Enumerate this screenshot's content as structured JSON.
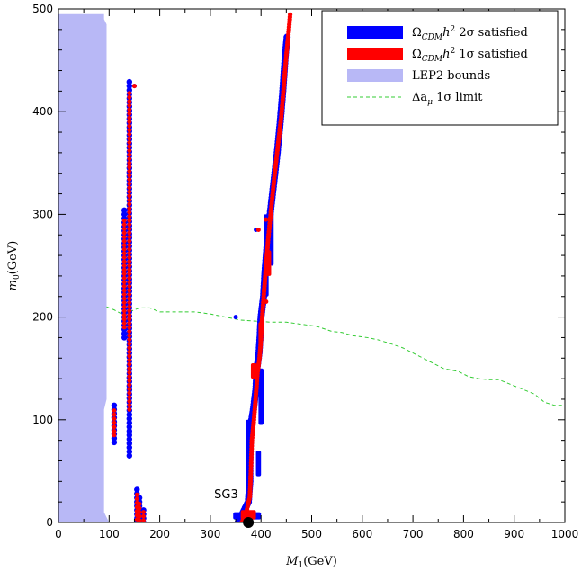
{
  "chart_data": {
    "type": "scatter",
    "xlabel_main": "M",
    "xlabel_sub": "1",
    "xlabel_unit": "(GeV)",
    "ylabel_main": "m",
    "ylabel_sub": "0",
    "ylabel_unit": "(GeV)",
    "xlim": [
      0,
      1000
    ],
    "ylim": [
      0,
      500
    ],
    "xticks": [
      0,
      100,
      200,
      300,
      400,
      500,
      600,
      700,
      800,
      900,
      1000
    ],
    "yticks": [
      0,
      100,
      200,
      300,
      400,
      500
    ],
    "grid": false,
    "legend_position": "top-right",
    "legend": [
      {
        "id": "two-sigma",
        "pre": "Ω",
        "sub": "CDM",
        "mid": "h",
        "sup": "2",
        "post": " 2σ satisfied",
        "color": "#0000ff"
      },
      {
        "id": "one-sigma",
        "pre": "Ω",
        "sub": "CDM",
        "mid": "h",
        "sup": "2",
        "post": " 1σ satisfied",
        "color": "#ff0000"
      },
      {
        "id": "lep2",
        "pre": "LEP2 bounds",
        "sub": "",
        "mid": "",
        "sup": "",
        "post": "",
        "color": "#b8b8f6"
      },
      {
        "id": "gmu",
        "pre": "Δa",
        "sub": "μ",
        "mid": "",
        "sup": "",
        "post": " 1σ limit",
        "color": "#33cc33"
      }
    ],
    "lep2_region": [
      [
        0,
        0
      ],
      [
        0,
        495
      ],
      [
        10,
        495
      ],
      [
        90,
        495
      ],
      [
        90,
        490
      ],
      [
        95,
        485
      ],
      [
        95,
        120
      ],
      [
        90,
        110
      ],
      [
        90,
        10
      ],
      [
        95,
        5
      ],
      [
        100,
        0
      ]
    ],
    "gmu_line": [
      [
        95,
        210
      ],
      [
        110,
        207
      ],
      [
        125,
        203
      ],
      [
        145,
        206
      ],
      [
        160,
        209
      ],
      [
        180,
        209
      ],
      [
        200,
        205
      ],
      [
        220,
        205
      ],
      [
        240,
        205
      ],
      [
        270,
        205
      ],
      [
        300,
        203
      ],
      [
        330,
        200
      ],
      [
        360,
        197
      ],
      [
        390,
        196
      ],
      [
        420,
        195
      ],
      [
        450,
        195
      ],
      [
        480,
        193
      ],
      [
        510,
        191
      ],
      [
        540,
        186
      ],
      [
        560,
        185
      ],
      [
        580,
        182
      ],
      [
        610,
        180
      ],
      [
        630,
        178
      ],
      [
        650,
        175
      ],
      [
        680,
        170
      ],
      [
        700,
        165
      ],
      [
        720,
        160
      ],
      [
        740,
        155
      ],
      [
        760,
        150
      ],
      [
        790,
        147
      ],
      [
        810,
        142
      ],
      [
        830,
        140
      ],
      [
        850,
        139
      ],
      [
        870,
        139
      ],
      [
        900,
        133
      ],
      [
        920,
        129
      ],
      [
        940,
        125
      ],
      [
        960,
        117
      ],
      [
        980,
        114
      ],
      [
        995,
        114
      ]
    ],
    "blue_bands": [
      {
        "x": 140,
        "y0": 65,
        "y1": 432
      },
      {
        "x": 130,
        "y0": 180,
        "y1": 305
      },
      {
        "x": 110,
        "y0": 78,
        "y1": 115
      },
      {
        "x": 155,
        "y0": 0,
        "y1": 33
      },
      {
        "x": 160,
        "y0": 0,
        "y1": 25
      },
      {
        "x": 168,
        "y0": 0,
        "y1": 12
      }
    ],
    "blue_points": [
      [
        150,
        425
      ],
      [
        350,
        200
      ],
      [
        390,
        285
      ]
    ],
    "red_bands": [
      {
        "x": 140,
        "y0": 110,
        "y1": 420
      },
      {
        "x": 130,
        "y0": 190,
        "y1": 295
      },
      {
        "x": 110,
        "y0": 85,
        "y1": 110
      },
      {
        "x": 155,
        "y0": 3,
        "y1": 28
      },
      {
        "x": 160,
        "y0": 2,
        "y1": 20
      },
      {
        "x": 168,
        "y0": 2,
        "y1": 10
      }
    ],
    "red_points": [
      [
        150,
        425
      ],
      [
        410,
        295
      ],
      [
        395,
        285
      ],
      [
        410,
        215
      ]
    ],
    "coann_blue_path": [
      [
        355,
        0
      ],
      [
        365,
        10
      ],
      [
        375,
        20
      ],
      [
        378,
        40
      ],
      [
        378,
        65
      ],
      [
        380,
        95
      ],
      [
        385,
        110
      ],
      [
        390,
        130
      ],
      [
        392,
        150
      ],
      [
        396,
        165
      ],
      [
        398,
        180
      ],
      [
        400,
        200
      ],
      [
        405,
        220
      ],
      [
        408,
        245
      ],
      [
        412,
        270
      ],
      [
        418,
        300
      ],
      [
        425,
        330
      ],
      [
        432,
        360
      ],
      [
        438,
        390
      ],
      [
        443,
        420
      ],
      [
        448,
        455
      ],
      [
        452,
        475
      ]
    ],
    "coann_red_path": [
      [
        362,
        0
      ],
      [
        370,
        8
      ],
      [
        378,
        25
      ],
      [
        380,
        50
      ],
      [
        382,
        80
      ],
      [
        386,
        100
      ],
      [
        390,
        125
      ],
      [
        393,
        145
      ],
      [
        397,
        160
      ],
      [
        400,
        178
      ],
      [
        402,
        198
      ],
      [
        406,
        225
      ],
      [
        410,
        250
      ],
      [
        414,
        275
      ],
      [
        420,
        305
      ],
      [
        426,
        335
      ],
      [
        433,
        365
      ],
      [
        440,
        395
      ],
      [
        445,
        425
      ],
      [
        450,
        455
      ],
      [
        455,
        480
      ],
      [
        458,
        497
      ]
    ],
    "extra_blue_blocks": [
      [
        370,
        45,
        382,
        100
      ],
      [
        390,
        45,
        400,
        70
      ],
      [
        395,
        95,
        405,
        150
      ],
      [
        345,
        3,
        400,
        10
      ],
      [
        405,
        220,
        415,
        300
      ],
      [
        418,
        250,
        425,
        305
      ]
    ],
    "extra_red_blocks": [
      [
        380,
        140,
        392,
        155
      ],
      [
        395,
        175,
        403,
        195
      ],
      [
        410,
        240,
        420,
        265
      ],
      [
        360,
        3,
        390,
        12
      ]
    ],
    "benchmark": {
      "label": "SG3",
      "x": 375,
      "y": 0
    }
  }
}
